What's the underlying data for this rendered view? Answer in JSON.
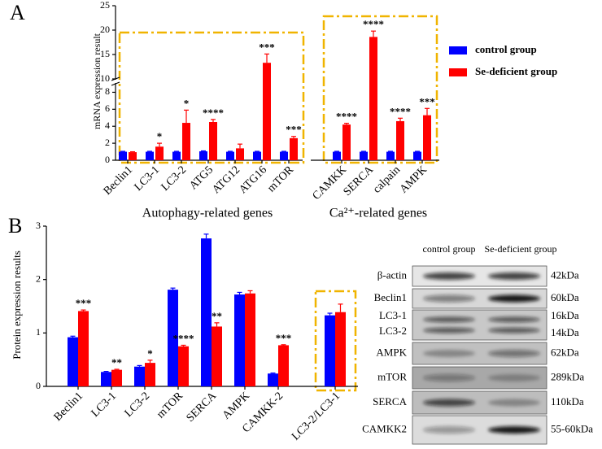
{
  "chart_data": [
    {
      "type": "bar",
      "panel": "A",
      "ylabel": "mRNA expression result",
      "groups": [
        {
          "name": "Autophagy-related genes",
          "categories": [
            "Beclin1",
            "LC3-1",
            "LC3-2",
            "ATG5",
            "ATG12",
            "ATG16",
            "mTOR"
          ]
        },
        {
          "name": "Ca²⁺-related genes",
          "categories": [
            "CAMKK",
            "SERCA",
            "calpain",
            "AMPK"
          ]
        }
      ],
      "series": [
        {
          "name": "control group",
          "color": "#0000ff",
          "values": [
            1,
            1,
            1,
            1.05,
            1,
            1,
            1,
            1,
            1,
            1,
            1
          ],
          "errors": [
            0.05,
            0.05,
            0.05,
            0.05,
            0.05,
            0.05,
            0.05,
            0.05,
            0.05,
            0.05,
            0.05
          ]
        },
        {
          "name": "Se-deficient group",
          "color": "#ff0000",
          "values": [
            0.95,
            1.6,
            4.4,
            4.5,
            1.4,
            13.3,
            2.6,
            4.2,
            18.6,
            4.6,
            5.3
          ],
          "errors": [
            0.05,
            0.4,
            1.5,
            0.3,
            0.5,
            1.8,
            0.2,
            0.15,
            1.2,
            0.35,
            0.8
          ],
          "labels": [
            null,
            "*",
            "*",
            "****",
            null,
            "***",
            "***",
            "****",
            "****",
            "****",
            "***"
          ]
        }
      ],
      "ylim": [
        0,
        25
      ],
      "y_break": [
        9,
        10
      ],
      "yticks": [
        0,
        2,
        4,
        6,
        8,
        10,
        15,
        20,
        25
      ],
      "legend": "right"
    },
    {
      "type": "bar",
      "panel": "B",
      "ylabel": "Protein expression results",
      "categories": [
        "Beclin1",
        "LC3-1",
        "LC3-2",
        "mTOR",
        "SERCA",
        "AMPK",
        "CAMKK-2",
        "LC3-2/LC3-1"
      ],
      "series": [
        {
          "name": "control group",
          "color": "#0000ff",
          "values": [
            0.92,
            0.27,
            0.37,
            1.81,
            2.77,
            1.72,
            0.24,
            1.33
          ],
          "errors": [
            0.02,
            0.01,
            0.02,
            0.03,
            0.08,
            0.04,
            0.01,
            0.04
          ]
        },
        {
          "name": "Se-deficient group",
          "color": "#ff0000",
          "values": [
            1.41,
            0.31,
            0.44,
            0.75,
            1.12,
            1.74,
            0.77,
            1.39
          ],
          "errors": [
            0.02,
            0.01,
            0.05,
            0.02,
            0.07,
            0.05,
            0.01,
            0.15
          ],
          "labels": [
            "***",
            "**",
            "*",
            "****",
            "**",
            null,
            "***",
            null
          ]
        }
      ],
      "ylim": [
        0,
        3
      ],
      "yticks": [
        0,
        1,
        2,
        3
      ]
    }
  ],
  "blot": {
    "columns": [
      "control group",
      "Se-deficient group"
    ],
    "rows": [
      {
        "names": [
          "β-actin"
        ],
        "sizes": [
          "42kDa"
        ]
      },
      {
        "names": [
          "Beclin1"
        ],
        "sizes": [
          "60kDa"
        ]
      },
      {
        "names": [
          "LC3-1",
          "LC3-2"
        ],
        "sizes": [
          "16kDa",
          "14kDa"
        ]
      },
      {
        "names": [
          "AMPK"
        ],
        "sizes": [
          "62kDa"
        ]
      },
      {
        "names": [
          "mTOR"
        ],
        "sizes": [
          "289kDa"
        ]
      },
      {
        "names": [
          "SERCA"
        ],
        "sizes": [
          "110kDa"
        ]
      },
      {
        "names": [
          "CAMKK2"
        ],
        "sizes": [
          "55-60kDa"
        ]
      }
    ]
  }
}
